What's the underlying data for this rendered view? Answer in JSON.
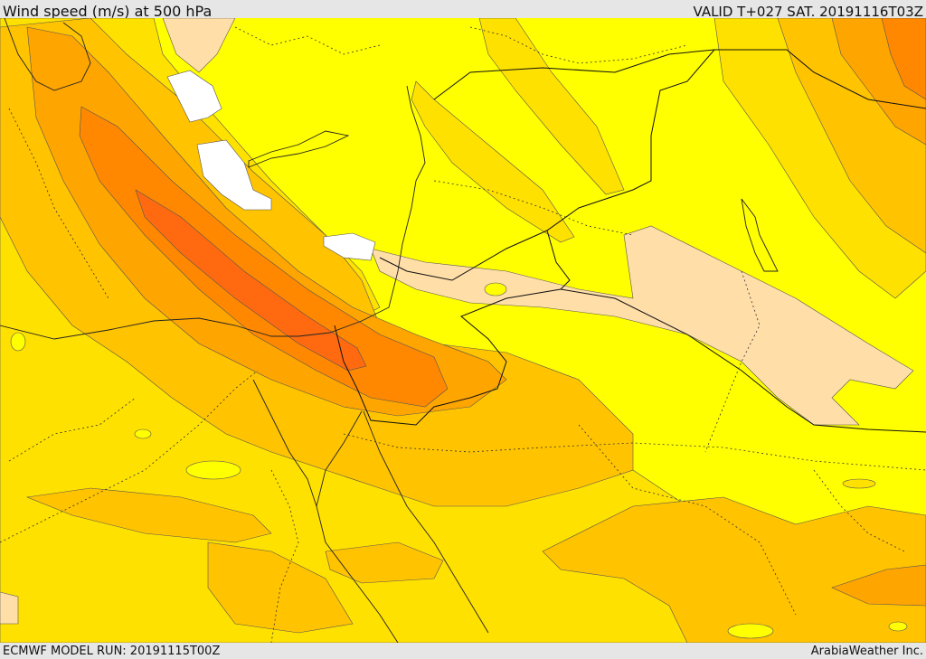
{
  "header": {
    "title": "Wind speed (m/s) at 500 hPa",
    "valid": "VALID T+027 SAT. 20191116T03Z"
  },
  "footer": {
    "model_run": "ECMWF MODEL RUN: 20191115T00Z",
    "credit": "ArabiaWeather Inc."
  },
  "colors": {
    "band_light_tan": "#ffdea8",
    "band_yellow": "#ffff00",
    "band_gold": "#ffe100",
    "band_amber": "#ffc300",
    "band_orange_light": "#ffa500",
    "band_orange": "#ff8800",
    "band_red_orange": "#ff6a10",
    "calm_areas": "#ffffff",
    "frame": "#e6e6e6"
  }
}
